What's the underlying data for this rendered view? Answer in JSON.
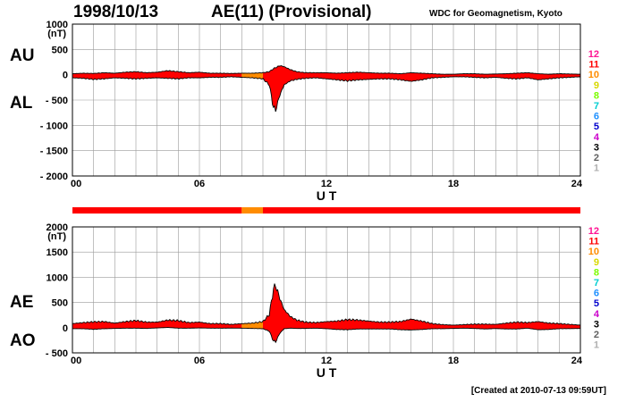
{
  "header": {
    "date": "1998/10/13",
    "title": "AE(11) (Provisional)",
    "source": "WDC for Geomagnetism, Kyoto"
  },
  "footer": {
    "created": "[Created at 2010-07-13 09:59UT]"
  },
  "station_scale": {
    "counts": [
      "12",
      "11",
      "10",
      "9",
      "8",
      "7",
      "6",
      "5",
      "4",
      "3",
      "2",
      "1"
    ],
    "colors": [
      "#ff1493",
      "#ff0000",
      "#ff8c00",
      "#d8d800",
      "#7cfc00",
      "#00ced1",
      "#1e90ff",
      "#0000cd",
      "#cc00cc",
      "#000000",
      "#606060",
      "#b0b0b0"
    ]
  },
  "colors": {
    "primary_fill": "#ff3322",
    "secondary_fill": "#f4a020",
    "outline": "#000000",
    "grid": "#9a9a9a"
  },
  "chart_data": [
    {
      "type": "area",
      "title": "",
      "panel_labels": [
        "AU",
        "AL"
      ],
      "xlabel": "U T",
      "ylabel": "(nT)",
      "xlim": [
        0,
        24
      ],
      "ylim": [
        -2000,
        1000
      ],
      "x_ticks": [
        "00",
        "06",
        "12",
        "18",
        "24"
      ],
      "y_ticks": [
        "1000",
        "500",
        "0",
        "- 500",
        "- 1000",
        "- 1500",
        "- 2000"
      ],
      "grid": true,
      "station_coverage": [
        {
          "from": 0,
          "to": 8,
          "stations": 11
        },
        {
          "from": 8,
          "to": 9,
          "stations": 10
        },
        {
          "from": 9,
          "to": 24,
          "stations": 11
        }
      ],
      "series": [
        {
          "name": "AU",
          "x": [
            0,
            0.5,
            1,
            1.5,
            2,
            2.5,
            3,
            3.5,
            4,
            4.5,
            5,
            5.5,
            6,
            6.5,
            7,
            7.5,
            8,
            8.5,
            9,
            9.3,
            9.5,
            9.6,
            9.8,
            10,
            10.3,
            10.6,
            11,
            11.5,
            12,
            12.5,
            13,
            13.5,
            14,
            14.5,
            15,
            15.5,
            16,
            16.5,
            17,
            17.5,
            18,
            18.5,
            19,
            19.5,
            20,
            20.5,
            21,
            21.5,
            22,
            22.5,
            23,
            23.5,
            24
          ],
          "values": [
            20,
            30,
            25,
            40,
            30,
            50,
            60,
            40,
            50,
            80,
            60,
            40,
            50,
            30,
            30,
            25,
            30,
            30,
            40,
            60,
            120,
            140,
            180,
            160,
            100,
            60,
            40,
            40,
            40,
            30,
            40,
            50,
            40,
            30,
            30,
            20,
            40,
            30,
            20,
            10,
            10,
            20,
            20,
            10,
            15,
            20,
            30,
            40,
            20,
            10,
            20,
            15,
            10
          ]
        },
        {
          "name": "AL",
          "x": [
            0,
            0.5,
            1,
            1.5,
            2,
            2.5,
            3,
            3.5,
            4,
            4.5,
            5,
            5.5,
            6,
            6.5,
            7,
            7.5,
            8,
            8.5,
            9,
            9.3,
            9.5,
            9.6,
            9.8,
            10,
            10.3,
            10.6,
            11,
            11.5,
            12,
            12.5,
            13,
            13.5,
            14,
            14.5,
            15,
            15.5,
            16,
            16.5,
            17,
            17.5,
            18,
            18.5,
            19,
            19.5,
            20,
            20.5,
            21,
            21.5,
            22,
            22.5,
            23,
            23.5,
            24
          ],
          "values": [
            -60,
            -70,
            -90,
            -80,
            -60,
            -70,
            -80,
            -70,
            -60,
            -70,
            -80,
            -60,
            -60,
            -50,
            -50,
            -40,
            -50,
            -60,
            -80,
            -200,
            -650,
            -700,
            -400,
            -200,
            -120,
            -90,
            -70,
            -60,
            -80,
            -100,
            -120,
            -100,
            -90,
            -80,
            -80,
            -100,
            -130,
            -100,
            -60,
            -50,
            -40,
            -40,
            -50,
            -60,
            -50,
            -70,
            -80,
            -60,
            -100,
            -80,
            -60,
            -50,
            -40
          ]
        }
      ]
    },
    {
      "type": "area",
      "title": "",
      "panel_labels": [
        "AE",
        "AO"
      ],
      "xlabel": "U T",
      "ylabel": "(nT)",
      "xlim": [
        0,
        24
      ],
      "ylim": [
        -500,
        2000
      ],
      "x_ticks": [
        "00",
        "06",
        "12",
        "18",
        "24"
      ],
      "y_ticks": [
        "2000",
        "1500",
        "1000",
        "500",
        "0",
        "- 500"
      ],
      "grid": true,
      "station_coverage": [
        {
          "from": 0,
          "to": 8,
          "stations": 11
        },
        {
          "from": 8,
          "to": 9,
          "stations": 10
        },
        {
          "from": 9,
          "to": 24,
          "stations": 11
        }
      ],
      "series": [
        {
          "name": "AE",
          "x": [
            0,
            0.5,
            1,
            1.5,
            2,
            2.5,
            3,
            3.5,
            4,
            4.5,
            5,
            5.5,
            6,
            6.5,
            7,
            7.5,
            8,
            8.5,
            9,
            9.3,
            9.5,
            9.6,
            9.8,
            10,
            10.3,
            10.6,
            11,
            11.5,
            12,
            12.5,
            13,
            13.5,
            14,
            14.5,
            15,
            15.5,
            16,
            16.5,
            17,
            17.5,
            18,
            18.5,
            19,
            19.5,
            20,
            20.5,
            21,
            21.5,
            22,
            22.5,
            23,
            23.5,
            24
          ],
          "values": [
            80,
            100,
            115,
            120,
            90,
            120,
            140,
            110,
            110,
            150,
            140,
            100,
            110,
            80,
            80,
            65,
            80,
            90,
            120,
            260,
            770,
            840,
            580,
            360,
            220,
            150,
            110,
            100,
            120,
            130,
            160,
            150,
            130,
            110,
            110,
            120,
            170,
            130,
            80,
            60,
            50,
            60,
            70,
            70,
            65,
            90,
            110,
            100,
            120,
            90,
            80,
            65,
            50
          ]
        },
        {
          "name": "AO",
          "x": [
            0,
            0.5,
            1,
            1.5,
            2,
            2.5,
            3,
            3.5,
            4,
            4.5,
            5,
            5.5,
            6,
            6.5,
            7,
            7.5,
            8,
            8.5,
            9,
            9.3,
            9.5,
            9.6,
            9.8,
            10,
            10.3,
            10.6,
            11,
            11.5,
            12,
            12.5,
            13,
            13.5,
            14,
            14.5,
            15,
            15.5,
            16,
            16.5,
            17,
            17.5,
            18,
            18.5,
            19,
            19.5,
            20,
            20.5,
            21,
            21.5,
            22,
            22.5,
            23,
            23.5,
            24
          ],
          "values": [
            -20,
            -20,
            -32,
            -20,
            -15,
            -10,
            -10,
            -15,
            -5,
            5,
            -10,
            -10,
            -5,
            -10,
            -10,
            -8,
            -10,
            -15,
            -20,
            -70,
            -265,
            -280,
            -110,
            -20,
            -10,
            -15,
            -15,
            -10,
            -20,
            -35,
            -40,
            -25,
            -25,
            -25,
            -25,
            -40,
            -45,
            -35,
            -20,
            -20,
            -15,
            -10,
            -15,
            -25,
            -17,
            -25,
            -25,
            -10,
            -40,
            -35,
            -20,
            -18,
            -15
          ]
        }
      ]
    }
  ]
}
